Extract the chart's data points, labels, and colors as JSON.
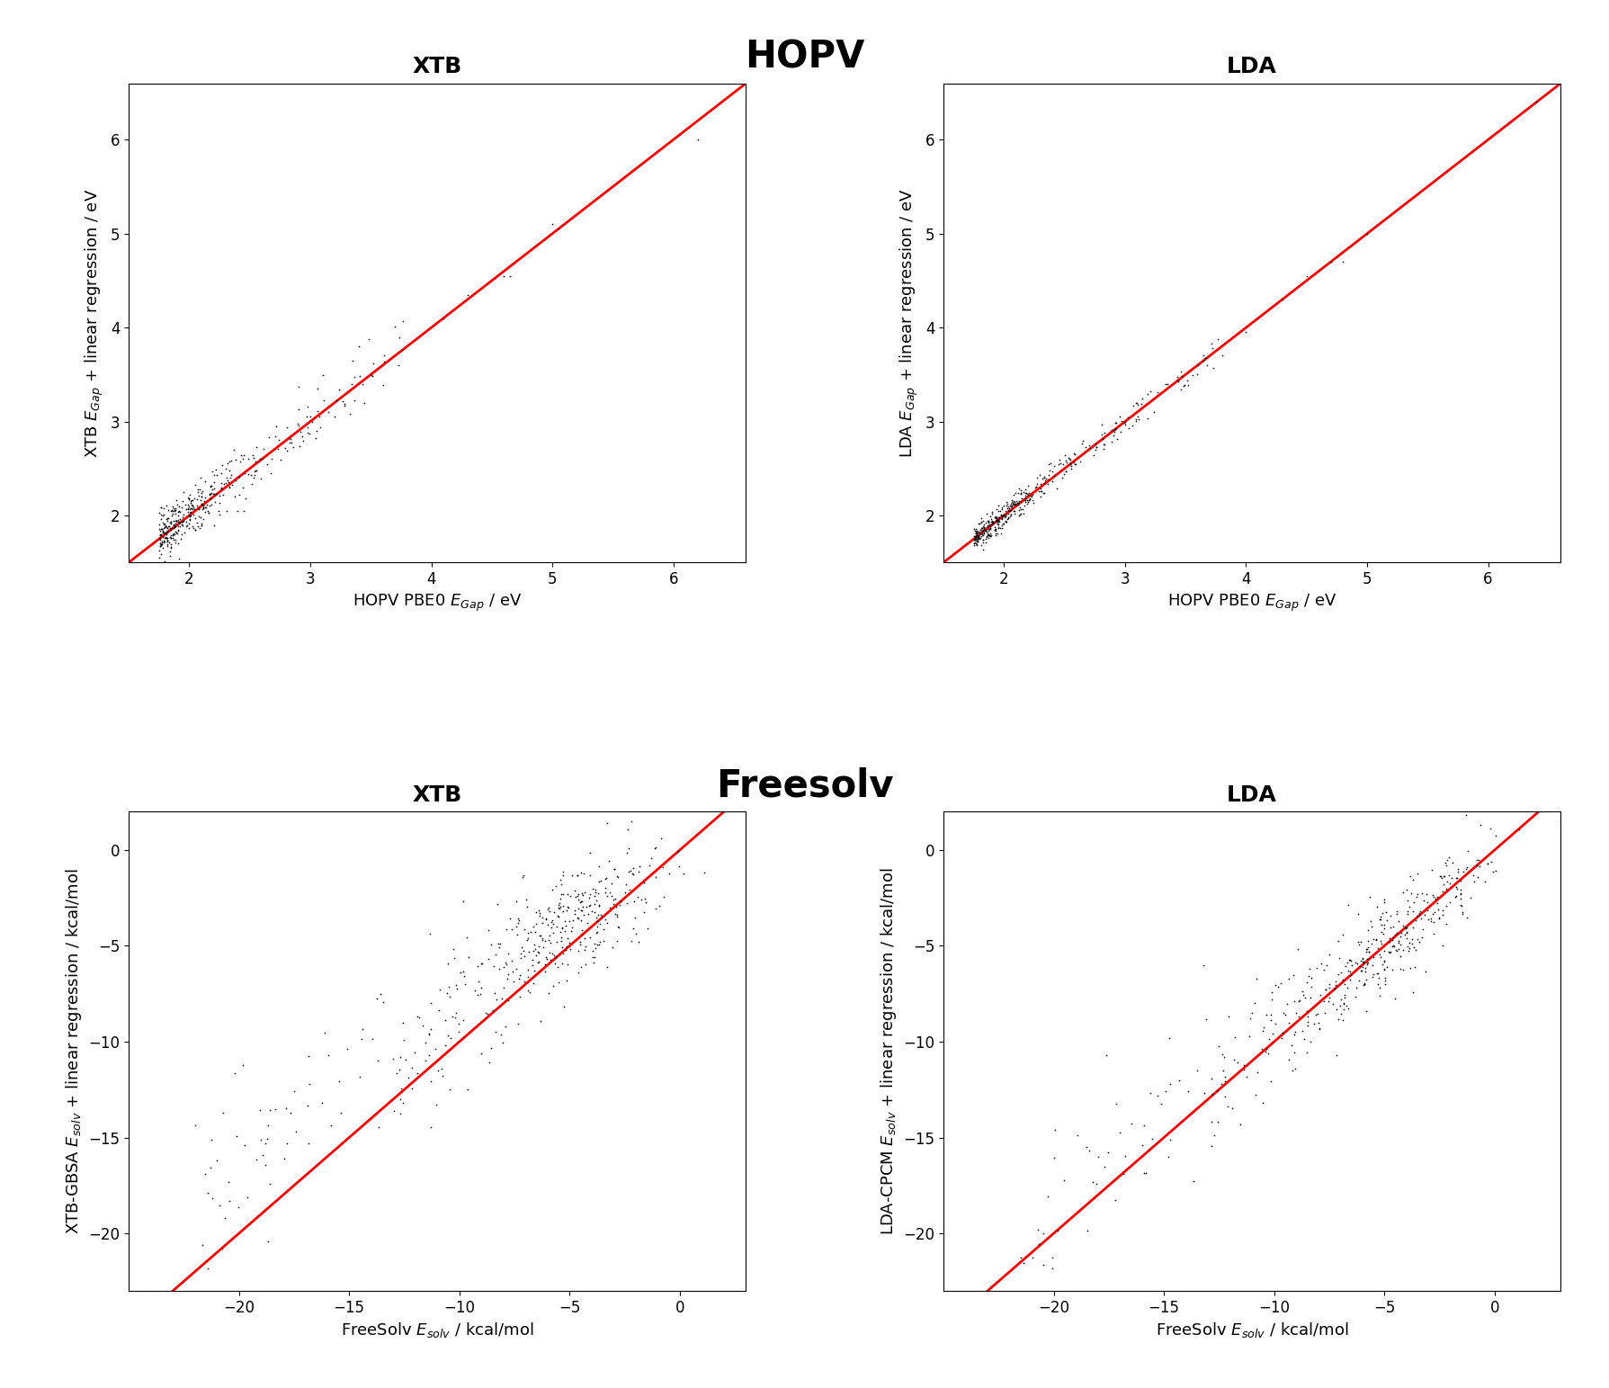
{
  "fig_width": 17.89,
  "fig_height": 15.43,
  "dpi": 100,
  "main_title_hopv": "HOPV",
  "main_title_freesolv": "Freesolv",
  "main_title_fontsize": 30,
  "main_title_fontweight": "bold",
  "subplot_title_fontsize": 18,
  "subplot_title_fontweight": "bold",
  "axis_label_fontsize": 13,
  "tick_label_fontsize": 12,
  "scatter_color": "black",
  "scatter_size": 6,
  "scatter_marker": ".",
  "line_color": "red",
  "line_width": 2.0,
  "hopv_xtb_title": "XTB",
  "hopv_lda_title": "LDA",
  "hopv_xlabel": "HOPV PBE0 $E_{Gap}$ / eV",
  "hopv_xtb_ylabel": "XTB $E_{Gap}$ + linear regression / eV",
  "hopv_lda_ylabel": "LDA $E_{Gap}$ + linear regression / eV",
  "hopv_xlim": [
    1.5,
    6.6
  ],
  "hopv_ylim": [
    1.5,
    6.6
  ],
  "hopv_xticks": [
    2,
    3,
    4,
    5,
    6
  ],
  "hopv_yticks": [
    2,
    3,
    4,
    5,
    6
  ],
  "freesolv_xtb_title": "XTB",
  "freesolv_lda_title": "LDA",
  "freesolv_xlabel": "FreeSolv $E_{solv}$ / kcal/mol",
  "freesolv_xtb_ylabel": "XTB-GBSA $E_{solv}$ + linear regression / kcal/mol",
  "freesolv_lda_ylabel": "LDA-CPCM $E_{solv}$ + linear regression / kcal/mol",
  "freesolv_xlim": [
    -25,
    3
  ],
  "freesolv_ylim": [
    -23,
    2
  ],
  "freesolv_xticks": [
    -20,
    -15,
    -10,
    -5,
    0
  ],
  "freesolv_yticks": [
    -20,
    -15,
    -10,
    -5,
    0
  ]
}
